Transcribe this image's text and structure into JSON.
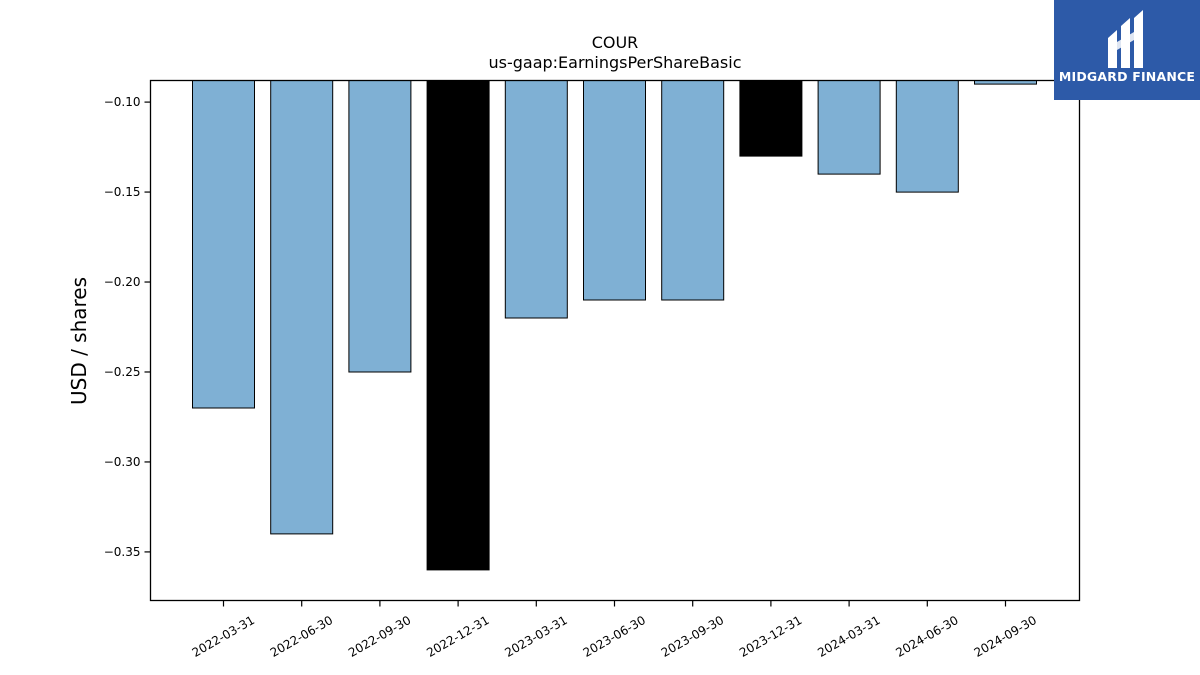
{
  "chart_data": {
    "type": "bar",
    "title": "COUR",
    "subtitle": "us-gaap:EarningsPerShareBasic",
    "xlabel": "",
    "ylabel": "USD / shares",
    "categories": [
      "2022-03-31",
      "2022-06-30",
      "2022-09-30",
      "2022-12-31",
      "2023-03-31",
      "2023-06-30",
      "2023-09-30",
      "2023-12-31",
      "2024-03-31",
      "2024-06-30",
      "2024-09-30"
    ],
    "values": [
      -0.27,
      -0.34,
      -0.25,
      -0.36,
      -0.22,
      -0.21,
      -0.21,
      -0.13,
      -0.14,
      -0.15,
      -0.09
    ],
    "highlight": [
      false,
      false,
      false,
      true,
      false,
      false,
      false,
      true,
      false,
      false,
      false
    ],
    "ylim": [
      -0.377,
      -0.088
    ],
    "yticks": [
      -0.1,
      -0.15,
      -0.2,
      -0.25,
      -0.3,
      -0.35
    ],
    "ytick_labels": [
      "−0.10",
      "−0.15",
      "−0.20",
      "−0.25",
      "−0.30",
      "−0.35"
    ],
    "grid": false,
    "colors": {
      "bar": "#7fb0d4",
      "highlight": "#000000",
      "edge": "#000000"
    }
  },
  "brand": {
    "name": "MIDGARD FINANCE",
    "color": "#2d5aa8"
  }
}
